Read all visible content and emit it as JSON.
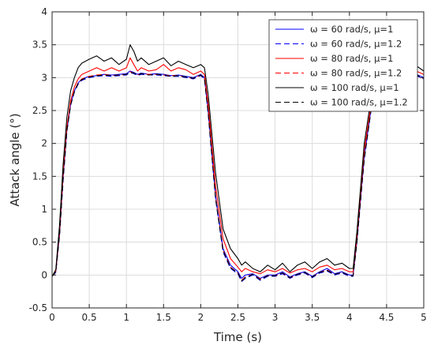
{
  "chart_data": {
    "type": "line",
    "xlabel": "Time (s)",
    "ylabel": "Attack angle (°)",
    "xlim": [
      0,
      5
    ],
    "ylim": [
      -0.5,
      4
    ],
    "xticks": [
      "0",
      "0.5",
      "1",
      "1.5",
      "2",
      "2.5",
      "3",
      "3.5",
      "4",
      "4.5",
      "5"
    ],
    "yticks": [
      "-0.5",
      "0",
      "0.5",
      "1",
      "1.5",
      "2",
      "2.5",
      "3",
      "3.5",
      "4"
    ],
    "grid": true,
    "legend_position": "top-right",
    "series": [
      {
        "name": "ω = 60 rad/s, μ=1",
        "color": "#0000ff",
        "dash": "solid",
        "x": [
          0,
          0.05,
          0.1,
          0.15,
          0.2,
          0.25,
          0.3,
          0.35,
          0.4,
          0.5,
          0.6,
          0.7,
          0.8,
          0.9,
          1.0,
          1.05,
          1.1,
          1.15,
          1.2,
          1.3,
          1.4,
          1.5,
          1.6,
          1.7,
          1.8,
          1.9,
          2.0,
          2.05,
          2.1,
          2.2,
          2.3,
          2.4,
          2.5,
          2.55,
          2.6,
          2.7,
          2.8,
          2.9,
          3.0,
          3.1,
          3.2,
          3.3,
          3.4,
          3.5,
          3.6,
          3.7,
          3.8,
          3.9,
          4.0,
          4.05,
          4.1,
          4.2,
          4.3,
          4.4,
          4.5,
          4.6,
          4.7,
          4.8,
          4.9,
          5.0
        ],
        "y": [
          -0.02,
          0.05,
          0.6,
          1.5,
          2.2,
          2.6,
          2.8,
          2.92,
          2.98,
          3.02,
          3.03,
          3.05,
          3.04,
          3.05,
          3.06,
          3.1,
          3.08,
          3.05,
          3.07,
          3.05,
          3.06,
          3.05,
          3.03,
          3.04,
          3.02,
          3.0,
          3.05,
          3.0,
          2.5,
          1.2,
          0.4,
          0.15,
          0.05,
          -0.05,
          0.0,
          0.02,
          -0.05,
          0.0,
          0.0,
          0.05,
          -0.03,
          0.02,
          0.05,
          -0.02,
          0.05,
          0.1,
          0.02,
          0.05,
          0.0,
          0.0,
          0.5,
          1.8,
          2.6,
          2.9,
          3.0,
          3.05,
          3.02,
          3.03,
          3.05,
          3.0
        ]
      },
      {
        "name": "ω = 60 rad/s, μ=1.2",
        "color": "#0000ff",
        "dash": "dashed",
        "x": [
          0,
          0.05,
          0.1,
          0.15,
          0.2,
          0.25,
          0.3,
          0.35,
          0.4,
          0.5,
          0.6,
          0.7,
          0.8,
          0.9,
          1.0,
          1.05,
          1.1,
          1.15,
          1.2,
          1.3,
          1.4,
          1.5,
          1.6,
          1.7,
          1.8,
          1.9,
          2.0,
          2.05,
          2.1,
          2.2,
          2.3,
          2.4,
          2.5,
          2.55,
          2.6,
          2.7,
          2.8,
          2.9,
          3.0,
          3.1,
          3.2,
          3.3,
          3.4,
          3.5,
          3.6,
          3.7,
          3.8,
          3.9,
          4.0,
          4.05,
          4.1,
          4.2,
          4.3,
          4.4,
          4.5,
          4.6,
          4.7,
          4.8,
          4.9,
          5.0
        ],
        "y": [
          -0.02,
          0.04,
          0.6,
          1.45,
          2.18,
          2.58,
          2.78,
          2.9,
          2.96,
          3.0,
          3.02,
          3.03,
          3.02,
          3.03,
          3.04,
          3.08,
          3.06,
          3.03,
          3.05,
          3.04,
          3.04,
          3.03,
          3.02,
          3.02,
          3.0,
          2.98,
          3.03,
          2.98,
          2.45,
          1.15,
          0.35,
          0.1,
          0.02,
          -0.1,
          -0.05,
          0.0,
          -0.08,
          -0.02,
          -0.02,
          0.02,
          -0.05,
          0.0,
          0.03,
          -0.04,
          0.03,
          0.06,
          0.0,
          0.03,
          -0.02,
          -0.02,
          0.48,
          1.75,
          2.58,
          2.88,
          2.98,
          3.03,
          3.0,
          3.01,
          3.03,
          2.98
        ]
      },
      {
        "name": "ω = 80 rad/s, μ=1",
        "color": "#ff0000",
        "dash": "solid",
        "x": [
          0,
          0.05,
          0.1,
          0.15,
          0.2,
          0.25,
          0.3,
          0.35,
          0.4,
          0.5,
          0.6,
          0.7,
          0.8,
          0.9,
          1.0,
          1.05,
          1.1,
          1.15,
          1.2,
          1.3,
          1.4,
          1.5,
          1.6,
          1.7,
          1.8,
          1.9,
          2.0,
          2.05,
          2.1,
          2.2,
          2.3,
          2.4,
          2.5,
          2.55,
          2.6,
          2.7,
          2.8,
          2.9,
          3.0,
          3.1,
          3.2,
          3.3,
          3.4,
          3.5,
          3.6,
          3.7,
          3.8,
          3.9,
          4.0,
          4.05,
          4.1,
          4.2,
          4.3,
          4.4,
          4.5,
          4.6,
          4.7,
          4.8,
          4.9,
          5.0
        ],
        "y": [
          -0.02,
          0.06,
          0.65,
          1.55,
          2.25,
          2.65,
          2.86,
          2.98,
          3.05,
          3.1,
          3.15,
          3.1,
          3.15,
          3.1,
          3.15,
          3.3,
          3.2,
          3.1,
          3.15,
          3.1,
          3.12,
          3.2,
          3.1,
          3.15,
          3.12,
          3.05,
          3.1,
          3.05,
          2.6,
          1.35,
          0.55,
          0.25,
          0.12,
          0.05,
          0.1,
          0.05,
          0.02,
          0.08,
          0.05,
          0.1,
          0.03,
          0.08,
          0.1,
          0.05,
          0.12,
          0.15,
          0.08,
          0.1,
          0.05,
          0.05,
          0.55,
          1.9,
          2.65,
          2.95,
          3.05,
          3.1,
          3.08,
          3.1,
          3.1,
          3.05
        ]
      },
      {
        "name": "ω = 80 rad/s, μ=1.2",
        "color": "#ff0000",
        "dash": "dashed",
        "x": [
          0,
          0.05,
          0.1,
          0.15,
          0.2,
          0.25,
          0.3,
          0.35,
          0.4,
          0.5,
          0.6,
          0.7,
          0.8,
          0.9,
          1.0,
          1.05,
          1.1,
          1.15,
          1.2,
          1.3,
          1.4,
          1.5,
          1.6,
          1.7,
          1.8,
          1.9,
          2.0,
          2.05,
          2.1,
          2.2,
          2.3,
          2.4,
          2.5,
          2.55,
          2.6,
          2.7,
          2.8,
          2.9,
          3.0,
          3.1,
          3.2,
          3.3,
          3.4,
          3.5,
          3.6,
          3.7,
          3.8,
          3.9,
          4.0,
          4.05,
          4.1,
          4.2,
          4.3,
          4.4,
          4.5,
          4.6,
          4.7,
          4.8,
          4.9,
          5.0
        ],
        "y": [
          -0.02,
          0.05,
          0.62,
          1.5,
          2.2,
          2.6,
          2.8,
          2.92,
          2.98,
          3.02,
          3.04,
          3.05,
          3.03,
          3.04,
          3.05,
          3.09,
          3.07,
          3.04,
          3.06,
          3.05,
          3.05,
          3.04,
          3.03,
          3.03,
          3.01,
          2.99,
          3.04,
          2.99,
          2.48,
          1.18,
          0.38,
          0.12,
          0.03,
          -0.08,
          -0.03,
          0.01,
          -0.06,
          -0.01,
          -0.01,
          0.03,
          -0.04,
          0.01,
          0.04,
          -0.03,
          0.04,
          0.08,
          0.01,
          0.04,
          -0.01,
          -0.01,
          0.5,
          1.78,
          2.6,
          2.9,
          3.0,
          3.04,
          3.01,
          3.02,
          3.04,
          2.99
        ]
      },
      {
        "name": "ω = 100 rad/s, μ=1",
        "color": "#000000",
        "dash": "solid",
        "x": [
          0,
          0.05,
          0.1,
          0.15,
          0.2,
          0.25,
          0.3,
          0.35,
          0.4,
          0.5,
          0.6,
          0.7,
          0.8,
          0.9,
          1.0,
          1.05,
          1.1,
          1.15,
          1.2,
          1.3,
          1.4,
          1.5,
          1.6,
          1.7,
          1.8,
          1.9,
          2.0,
          2.05,
          2.1,
          2.2,
          2.3,
          2.4,
          2.5,
          2.55,
          2.6,
          2.7,
          2.8,
          2.9,
          3.0,
          3.1,
          3.2,
          3.3,
          3.4,
          3.5,
          3.6,
          3.7,
          3.8,
          3.9,
          4.0,
          4.05,
          4.1,
          4.2,
          4.3,
          4.4,
          4.5,
          4.6,
          4.7,
          4.8,
          4.9,
          5.0
        ],
        "y": [
          -0.02,
          0.08,
          0.75,
          1.7,
          2.4,
          2.8,
          3.0,
          3.15,
          3.22,
          3.28,
          3.33,
          3.25,
          3.3,
          3.2,
          3.28,
          3.5,
          3.4,
          3.25,
          3.3,
          3.2,
          3.25,
          3.3,
          3.18,
          3.25,
          3.2,
          3.15,
          3.2,
          3.15,
          2.75,
          1.55,
          0.7,
          0.4,
          0.25,
          0.15,
          0.2,
          0.1,
          0.05,
          0.15,
          0.08,
          0.18,
          0.05,
          0.15,
          0.2,
          0.1,
          0.2,
          0.25,
          0.15,
          0.18,
          0.1,
          0.1,
          0.65,
          2.0,
          2.75,
          3.05,
          3.15,
          3.2,
          3.18,
          3.2,
          3.18,
          3.1
        ]
      },
      {
        "name": "ω = 100 rad/s, μ=1.2",
        "color": "#000000",
        "dash": "dashed",
        "x": [
          0,
          0.05,
          0.1,
          0.15,
          0.2,
          0.25,
          0.3,
          0.35,
          0.4,
          0.5,
          0.6,
          0.7,
          0.8,
          0.9,
          1.0,
          1.05,
          1.1,
          1.15,
          1.2,
          1.3,
          1.4,
          1.5,
          1.6,
          1.7,
          1.8,
          1.9,
          2.0,
          2.05,
          2.1,
          2.2,
          2.3,
          2.4,
          2.5,
          2.55,
          2.6,
          2.7,
          2.8,
          2.9,
          3.0,
          3.1,
          3.2,
          3.3,
          3.4,
          3.5,
          3.6,
          3.7,
          3.8,
          3.9,
          4.0,
          4.05,
          4.1,
          4.2,
          4.3,
          4.4,
          4.5,
          4.6,
          4.7,
          4.8,
          4.9,
          5.0
        ],
        "y": [
          -0.02,
          0.05,
          0.6,
          1.48,
          2.19,
          2.59,
          2.79,
          2.91,
          2.97,
          3.01,
          3.03,
          3.04,
          3.03,
          3.04,
          3.05,
          3.08,
          3.07,
          3.04,
          3.06,
          3.04,
          3.05,
          3.04,
          3.02,
          3.03,
          3.01,
          2.99,
          3.04,
          2.99,
          2.47,
          1.17,
          0.37,
          0.11,
          0.03,
          -0.09,
          -0.04,
          0.01,
          -0.07,
          -0.01,
          -0.01,
          0.03,
          -0.04,
          0.01,
          0.04,
          -0.03,
          0.04,
          0.07,
          0.01,
          0.04,
          -0.01,
          -0.01,
          0.49,
          1.77,
          2.59,
          2.89,
          2.99,
          3.04,
          3.01,
          3.02,
          3.04,
          2.99
        ]
      }
    ]
  }
}
